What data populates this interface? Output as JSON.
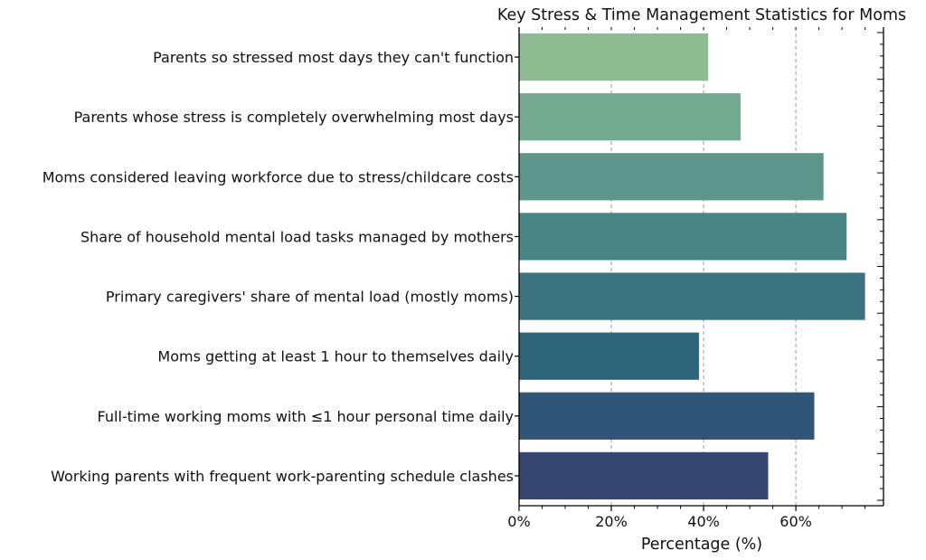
{
  "chart_data": {
    "type": "bar",
    "orientation": "horizontal",
    "title": "Key Stress & Time Management Statistics for Moms",
    "xlabel": "Percentage (%)",
    "ylabel": "",
    "xlim": [
      0,
      79
    ],
    "xticks": [
      0,
      20,
      40,
      60
    ],
    "xtick_labels": [
      "0%",
      "20%",
      "40%",
      "60%"
    ],
    "grid": "x-dashed",
    "categories": [
      "Parents so stressed most days they can't function",
      "Parents whose stress is completely overwhelming most days",
      "Moms considered leaving workforce due to stress/childcare costs",
      "Share of household mental load tasks managed by mothers",
      "Primary caregivers' share of mental load (mostly moms)",
      "Moms getting at least 1 hour to themselves daily",
      "Full-time working moms with ≤1 hour personal time daily",
      "Working parents with frequent work-parenting schedule clashes"
    ],
    "values": [
      41,
      48,
      66,
      71,
      75,
      39,
      64,
      54
    ],
    "colors": [
      "#8fbb93",
      "#73a991",
      "#5c968b",
      "#4a8585",
      "#3b7480",
      "#2e6479",
      "#2f5577",
      "#364671"
    ]
  }
}
